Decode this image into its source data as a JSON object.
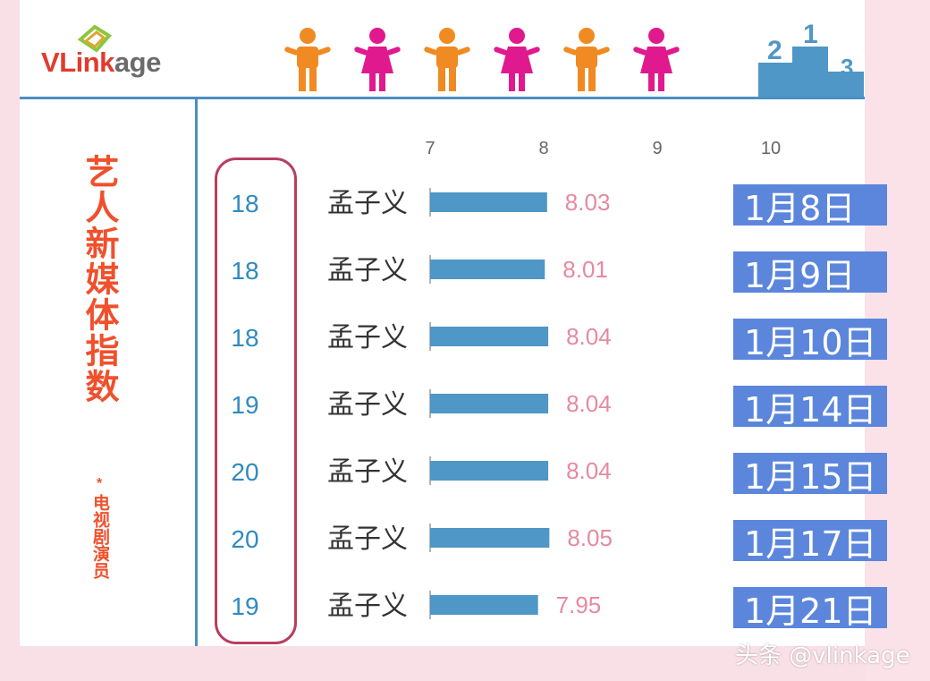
{
  "brand": {
    "logo_text_v": "V",
    "logo_text_link": "Link",
    "logo_text_age": "age"
  },
  "sidebar": {
    "title": "艺人新媒体指数",
    "dot": "*",
    "subtitle": "电视剧演员"
  },
  "watermark": "头条 @vlinkage",
  "colors": {
    "orange_person": "#f08a22",
    "pink_person": "#e0198f",
    "bar": "#4e97c6",
    "date_bg": "#5b86dc",
    "title": "#f0502c",
    "rank_box": "#b83e61"
  },
  "header_icons": [
    "person-male-icon",
    "person-female-icon",
    "person-male-icon",
    "person-female-icon",
    "person-male-icon",
    "person-female-icon",
    "podium-icon"
  ],
  "chart_data": {
    "type": "bar",
    "orientation": "horizontal",
    "xlim": [
      7,
      10
    ],
    "xticks": [
      "7",
      "8",
      "9",
      "10"
    ],
    "categories": [
      "孟子义",
      "孟子义",
      "孟子义",
      "孟子义",
      "孟子义",
      "孟子义",
      "孟子义"
    ],
    "values": [
      8.03,
      8.01,
      8.04,
      8.04,
      8.04,
      8.05,
      7.95
    ],
    "value_labels": [
      "8.03",
      "8.01",
      "8.04",
      "8.04",
      "8.04",
      "8.05",
      "7.95"
    ],
    "ranks": [
      "18",
      "18",
      "18",
      "19",
      "20",
      "20",
      "19"
    ],
    "dates": [
      "1月8日",
      "1月9日",
      "1月10日",
      "1月14日",
      "1月15日",
      "1月17日",
      "1月21日"
    ]
  }
}
